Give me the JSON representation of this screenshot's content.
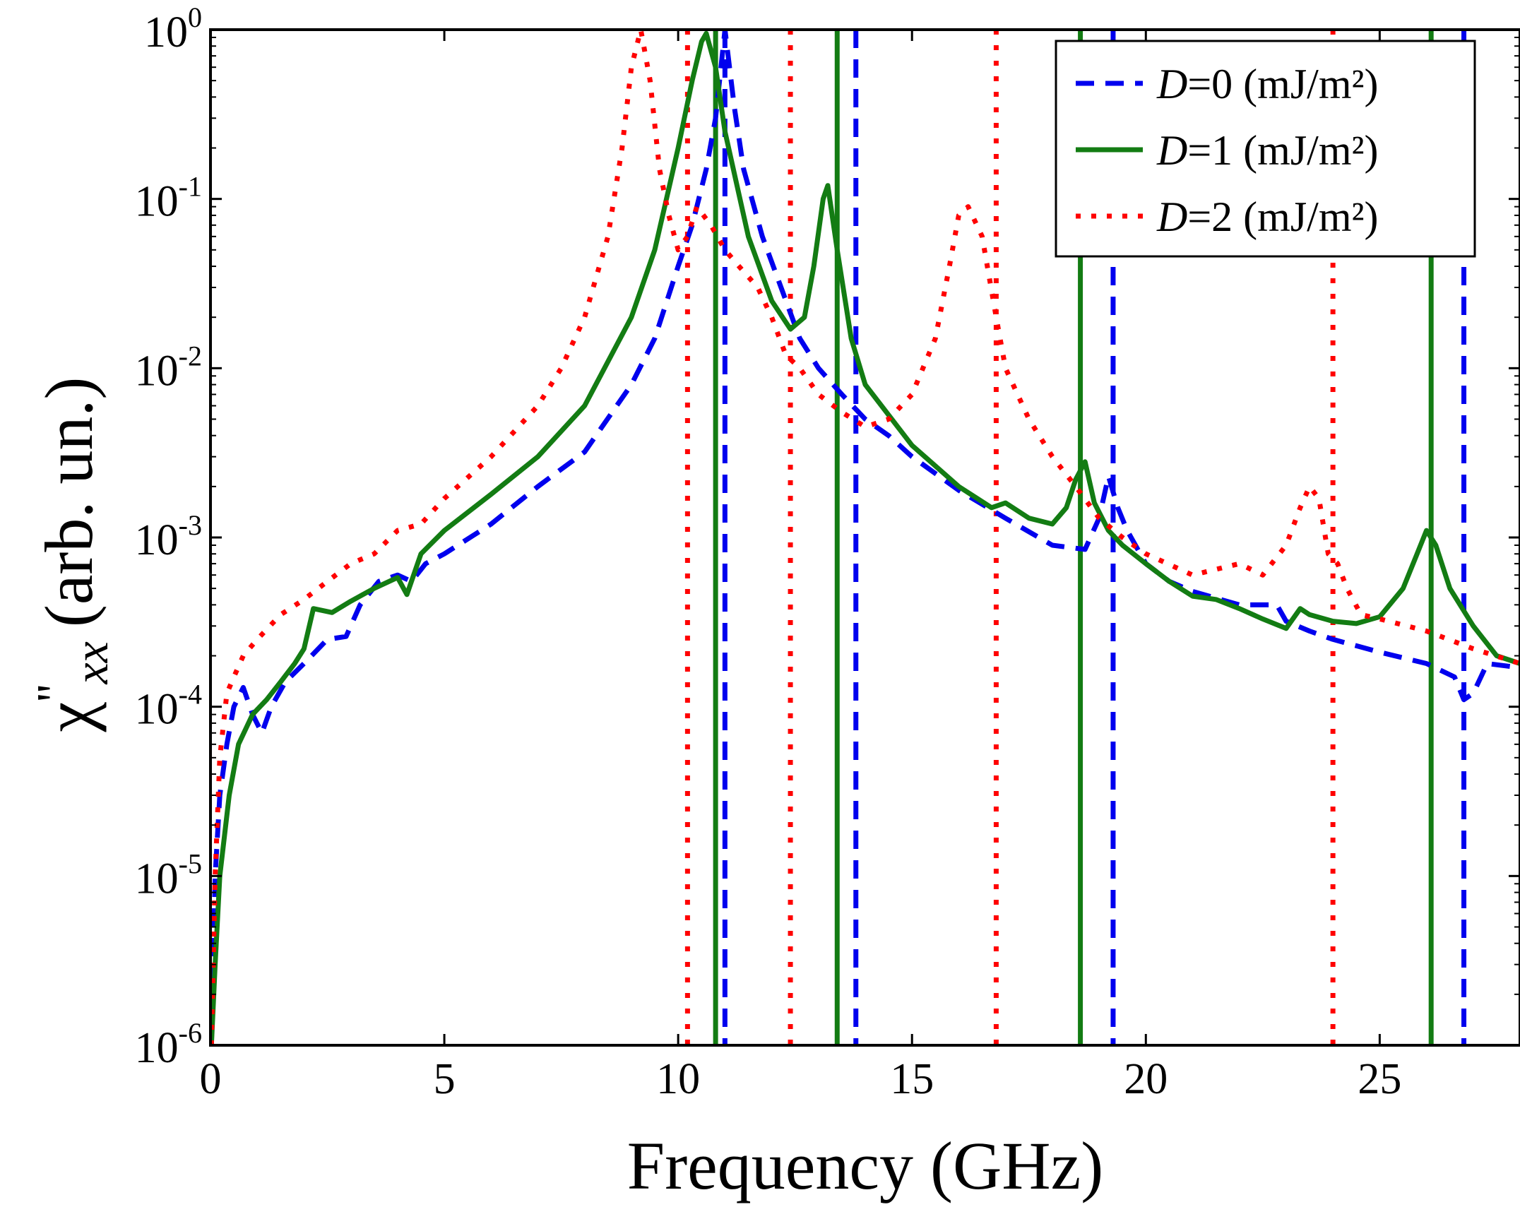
{
  "chart_data": {
    "type": "line",
    "xlabel": "Frequency (GHz)",
    "ylabel": {
      "prefix": "χ",
      "prime": "''",
      "sub": "xx",
      "suffix": "(arb. un.)"
    },
    "x_scale": "linear",
    "y_scale": "log",
    "xlim": [
      0,
      28
    ],
    "ylim": [
      1e-06,
      1
    ],
    "x_ticks": [
      {
        "value": 0,
        "label": "0"
      },
      {
        "value": 5,
        "label": "5"
      },
      {
        "value": 10,
        "label": "10"
      },
      {
        "value": 15,
        "label": "15"
      },
      {
        "value": 20,
        "label": "20"
      },
      {
        "value": 25,
        "label": "25"
      }
    ],
    "y_ticks": [
      {
        "value": 1e-06,
        "base": "10",
        "exp": "-6"
      },
      {
        "value": 1e-05,
        "base": "10",
        "exp": "-5"
      },
      {
        "value": 0.0001,
        "base": "10",
        "exp": "-4"
      },
      {
        "value": 0.001,
        "base": "10",
        "exp": "-3"
      },
      {
        "value": 0.01,
        "base": "10",
        "exp": "-2"
      },
      {
        "value": 0.1,
        "base": "10",
        "exp": "-1"
      },
      {
        "value": 1,
        "base": "10",
        "exp": "0"
      }
    ],
    "grid": false,
    "legend_position": "top-right",
    "series": [
      {
        "name": "D=0 (mJ/m²)",
        "legend_italic": "D",
        "legend_rest": "=0 (mJ/m²)",
        "color": "#0000ee",
        "style": "dashed",
        "x": [
          0.02,
          0.1,
          0.2,
          0.35,
          0.5,
          0.7,
          0.9,
          1.1,
          1.3,
          1.6,
          2.0,
          2.5,
          2.9,
          3.2,
          3.6,
          4.0,
          4.3,
          4.6,
          5.0,
          6.0,
          7.0,
          8.0,
          9.0,
          9.5,
          10.0,
          10.3,
          10.6,
          10.8,
          11.0,
          11.2,
          11.4,
          11.8,
          12.2,
          12.6,
          13.0,
          13.5,
          14.0,
          14.5,
          15.0,
          16.0,
          17.0,
          18.0,
          18.7,
          19.0,
          19.2,
          19.4,
          19.6,
          20.0,
          20.5,
          21.0,
          22.0,
          22.8,
          23.0,
          23.5,
          24.0,
          25.0,
          26.0,
          26.6,
          26.8,
          27.0,
          27.3,
          28.0
        ],
        "y": [
          1e-06,
          1e-05,
          3e-05,
          6e-05,
          0.0001,
          0.00013,
          9e-05,
          7e-05,
          0.0001,
          0.00014,
          0.00018,
          0.00025,
          0.00026,
          0.0004,
          0.00055,
          0.0006,
          0.00055,
          0.0007,
          0.0008,
          0.0012,
          0.002,
          0.0032,
          0.008,
          0.015,
          0.04,
          0.07,
          0.15,
          0.3,
          1.0,
          0.35,
          0.15,
          0.06,
          0.03,
          0.015,
          0.01,
          0.007,
          0.005,
          0.004,
          0.003,
          0.0019,
          0.0013,
          0.0009,
          0.00085,
          0.0013,
          0.0023,
          0.0015,
          0.0011,
          0.0007,
          0.00055,
          0.00048,
          0.0004,
          0.0004,
          0.00032,
          0.00028,
          0.00025,
          0.00021,
          0.00018,
          0.00015,
          0.00011,
          0.00012,
          0.00018,
          0.00017
        ]
      },
      {
        "name": "D=1 (mJ/m²)",
        "legend_italic": "D",
        "legend_rest": "=1 (mJ/m²)",
        "color": "#137c13",
        "style": "solid",
        "x": [
          0.02,
          0.1,
          0.2,
          0.4,
          0.6,
          0.9,
          1.2,
          1.5,
          1.8,
          2.0,
          2.2,
          2.6,
          3.0,
          3.5,
          4.0,
          4.2,
          4.5,
          5.0,
          6.0,
          7.0,
          8.0,
          9.0,
          9.5,
          10.0,
          10.3,
          10.5,
          10.6,
          10.8,
          11.0,
          11.5,
          12.0,
          12.4,
          12.7,
          12.9,
          13.1,
          13.2,
          13.4,
          13.7,
          14.0,
          15.0,
          16.0,
          16.7,
          17.0,
          17.5,
          18.0,
          18.3,
          18.5,
          18.7,
          18.9,
          19.2,
          19.5,
          20.0,
          20.5,
          21.0,
          21.5,
          22.0,
          22.5,
          23.0,
          23.3,
          23.5,
          24.0,
          24.5,
          25.0,
          25.5,
          25.8,
          26.0,
          26.2,
          26.5,
          27.0,
          27.5,
          28.0
        ],
        "y": [
          1e-06,
          3e-06,
          1e-05,
          3e-05,
          6e-05,
          9e-05,
          0.00011,
          0.00014,
          0.00018,
          0.00022,
          0.00038,
          0.00036,
          0.00042,
          0.0005,
          0.00058,
          0.00046,
          0.0008,
          0.0011,
          0.0018,
          0.003,
          0.006,
          0.02,
          0.05,
          0.2,
          0.5,
          0.85,
          0.95,
          0.6,
          0.25,
          0.06,
          0.025,
          0.017,
          0.02,
          0.04,
          0.1,
          0.12,
          0.05,
          0.015,
          0.008,
          0.0035,
          0.002,
          0.0015,
          0.0016,
          0.0013,
          0.0012,
          0.0015,
          0.0022,
          0.0028,
          0.0016,
          0.0011,
          0.0009,
          0.0007,
          0.00055,
          0.00045,
          0.00043,
          0.00038,
          0.00033,
          0.00029,
          0.00038,
          0.00035,
          0.00032,
          0.00031,
          0.00034,
          0.0005,
          0.0008,
          0.0011,
          0.0009,
          0.0005,
          0.0003,
          0.0002,
          0.00018
        ]
      },
      {
        "name": "D=2 (mJ/m²)",
        "legend_italic": "D",
        "legend_rest": "=2 (mJ/m²)",
        "color": "#ff0000",
        "style": "dotted",
        "x": [
          0.02,
          0.1,
          0.2,
          0.35,
          0.5,
          0.7,
          1.0,
          1.5,
          2.0,
          2.5,
          3.0,
          3.5,
          4.0,
          4.5,
          5.0,
          6.0,
          7.0,
          7.5,
          8.0,
          8.5,
          8.8,
          9.0,
          9.2,
          9.4,
          9.6,
          9.8,
          10.0,
          10.2,
          10.4,
          10.7,
          11.0,
          11.3,
          11.7,
          12.0,
          12.3,
          12.6,
          13.0,
          13.5,
          14.0,
          14.5,
          15.0,
          15.5,
          15.8,
          16.0,
          16.2,
          16.5,
          16.8,
          17.0,
          17.5,
          18.0,
          18.5,
          19.0,
          19.5,
          20.0,
          21.0,
          22.0,
          22.5,
          23.0,
          23.3,
          23.5,
          23.7,
          23.9,
          24.1,
          24.3,
          24.6,
          25.0,
          26.0,
          27.0,
          28.0
        ],
        "y": [
          1e-06,
          1e-05,
          5e-05,
          0.00012,
          0.00015,
          0.0002,
          0.00025,
          0.00035,
          0.00043,
          0.00055,
          0.0007,
          0.0008,
          0.0011,
          0.0012,
          0.0017,
          0.003,
          0.006,
          0.01,
          0.02,
          0.06,
          0.2,
          0.6,
          1.0,
          0.5,
          0.15,
          0.08,
          0.05,
          0.06,
          0.09,
          0.07,
          0.05,
          0.04,
          0.03,
          0.02,
          0.012,
          0.01,
          0.007,
          0.0055,
          0.0045,
          0.005,
          0.007,
          0.015,
          0.04,
          0.08,
          0.09,
          0.06,
          0.02,
          0.01,
          0.005,
          0.003,
          0.002,
          0.0013,
          0.001,
          0.0008,
          0.0006,
          0.0007,
          0.0006,
          0.0009,
          0.0015,
          0.002,
          0.0017,
          0.0008,
          0.0007,
          0.0005,
          0.00035,
          0.00033,
          0.00028,
          0.00022,
          0.00018
        ]
      }
    ],
    "vertical_lines": [
      {
        "series": 0,
        "x": 11.0
      },
      {
        "series": 0,
        "x": 13.8
      },
      {
        "series": 0,
        "x": 19.3
      },
      {
        "series": 0,
        "x": 26.8
      },
      {
        "series": 1,
        "x": 10.8
      },
      {
        "series": 1,
        "x": 13.4
      },
      {
        "series": 1,
        "x": 18.6
      },
      {
        "series": 1,
        "x": 26.1
      },
      {
        "series": 2,
        "x": 10.2
      },
      {
        "series": 2,
        "x": 12.4
      },
      {
        "series": 2,
        "x": 16.8
      },
      {
        "series": 2,
        "x": 24.0
      }
    ]
  }
}
